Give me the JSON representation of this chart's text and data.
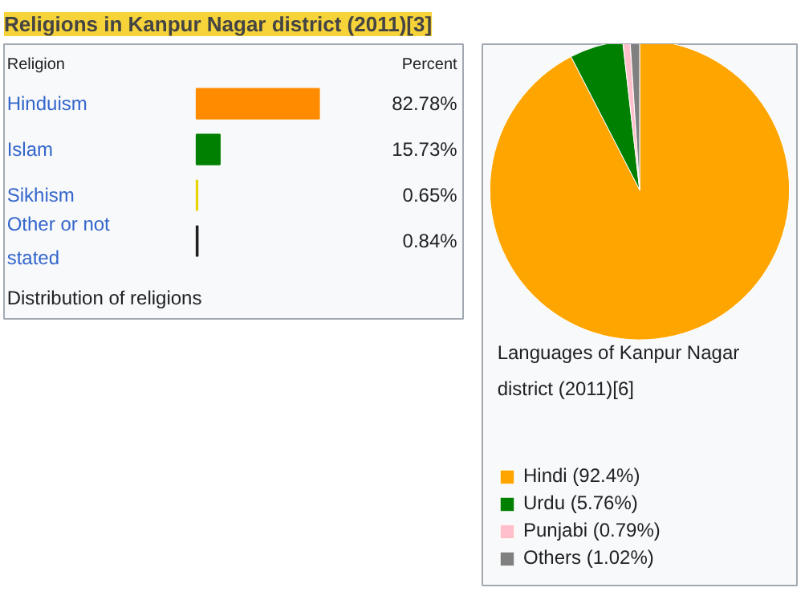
{
  "chart_data": [
    {
      "type": "bar",
      "orientation": "horizontal",
      "title": "Religions in Kanpur Nagar district (2011)[3]",
      "categories": [
        "Hinduism",
        "Islam",
        "Sikhism",
        "Other or not stated"
      ],
      "values": [
        82.78,
        15.73,
        0.65,
        0.84
      ],
      "colors": [
        "#ff8c00",
        "#008000",
        "#e8d400",
        "#202020"
      ],
      "value_labels": [
        "82.78%",
        "15.73%",
        "0.65%",
        "0.84%"
      ],
      "annotations": [
        "Religion",
        "Percent",
        "Distribution of religions"
      ]
    },
    {
      "type": "pie",
      "title": "Languages of Kanpur Nagar district (2011)[6]",
      "categories": [
        "Hindi (92.4%)",
        "Urdu (5.76%)",
        "Punjabi (0.79%)",
        "Others (1.02%)"
      ],
      "values": [
        92.4,
        5.76,
        0.79,
        1.02
      ],
      "colors": [
        "#ffa500",
        "#008000",
        "#ffc0cb",
        "#808080"
      ],
      "legend": "bottom"
    }
  ]
}
